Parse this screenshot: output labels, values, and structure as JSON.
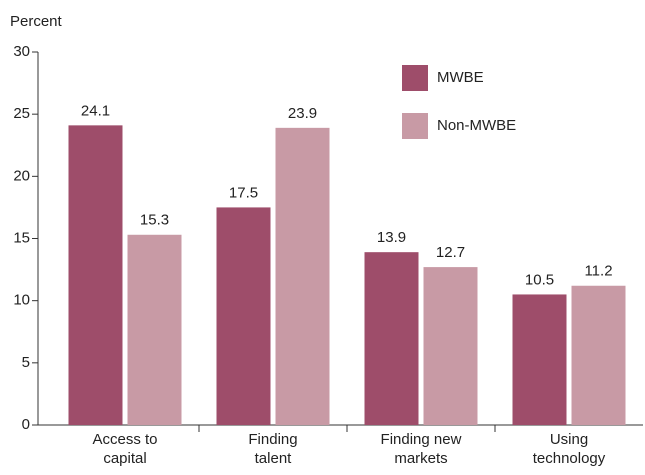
{
  "chart_data": {
    "type": "bar",
    "y_label": "Percent",
    "categories": [
      "Access to\ncapital",
      "Finding\ntalent",
      "Finding new\nmarkets",
      "Using\ntechnology"
    ],
    "series": [
      {
        "name": "MWBE",
        "color": "#9e4d6a",
        "values": [
          24.1,
          17.5,
          13.9,
          10.5
        ]
      },
      {
        "name": "Non-MWBE",
        "color": "#c89aa5",
        "values": [
          15.3,
          23.9,
          12.7,
          11.2
        ]
      }
    ],
    "ylim": [
      0,
      30
    ],
    "yticks": [
      0,
      5,
      10,
      15,
      20,
      25,
      30
    ],
    "legend": "upper right"
  }
}
